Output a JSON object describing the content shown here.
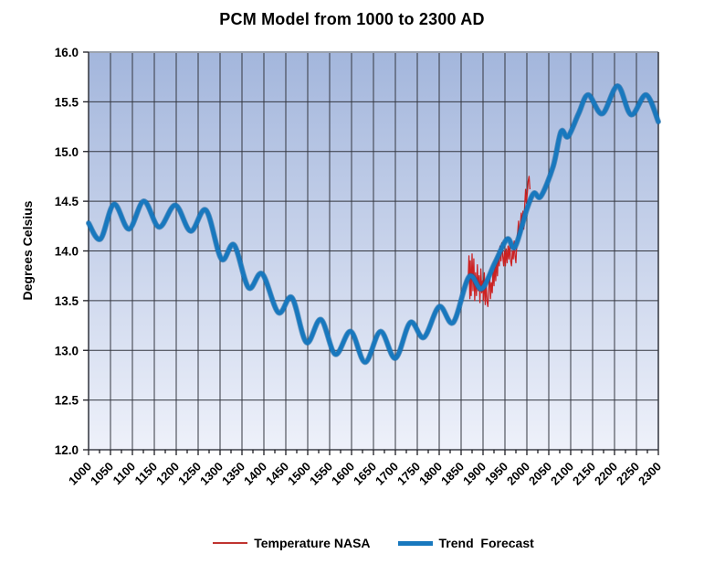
{
  "title": "PCM Model from 1000 to 2300 AD",
  "y_axis": {
    "label": "Degrees Celsius",
    "tick_labels": [
      "16.0",
      "15.5",
      "15.0",
      "14.5",
      "14.0",
      "13.5",
      "13.0",
      "12.5",
      "12.0"
    ]
  },
  "x_axis": {
    "tick_labels": [
      "1000",
      "1050",
      "1100",
      "1150",
      "1200",
      "1250",
      "1300",
      "1350",
      "1400",
      "1450",
      "1500",
      "1550",
      "1600",
      "1650",
      "1700",
      "1750",
      "1800",
      "1850",
      "1900",
      "1950",
      "2000",
      "2050",
      "2100",
      "2150",
      "2200",
      "2250",
      "2300"
    ]
  },
  "legend": [
    {
      "label": "Temperature NASA",
      "color": "#c03430",
      "line_thickness": 2
    },
    {
      "label": "Trend  Forecast",
      "color": "#1878be",
      "line_thickness": 5
    }
  ],
  "colors": {
    "plot_bg_top": "#a3b6dc",
    "plot_bg_bottom": "#eef1fa",
    "gridline": "#343740",
    "border_dark": "#3c3f48",
    "border_top": "#9aa2ae",
    "tick": "#1c1c22",
    "text": "#000000",
    "nasa_red": "#cc2222",
    "trend_blue": "#1878be",
    "trend_blue_edge": "#10609f"
  },
  "chart_data": {
    "type": "line",
    "title": "PCM Model from 1000 to 2300 AD",
    "xlabel": "",
    "ylabel": "Degrees Celsius",
    "xlim": [
      1000,
      2300
    ],
    "ylim": [
      12.0,
      16.0
    ],
    "x_major_step": 50,
    "x_minor_step": 25,
    "y_major_step": 0.5,
    "grid": true,
    "legend_position": "bottom",
    "series": [
      {
        "name": "Temperature NASA",
        "color": "#cc2222",
        "width": 1.3,
        "smooth": false,
        "points": [
          [
            1866,
            13.7
          ],
          [
            1868,
            13.95
          ],
          [
            1870,
            13.52
          ],
          [
            1871,
            13.9
          ],
          [
            1873,
            13.55
          ],
          [
            1875,
            13.97
          ],
          [
            1877,
            13.6
          ],
          [
            1879,
            13.92
          ],
          [
            1881,
            13.5
          ],
          [
            1883,
            13.78
          ],
          [
            1885,
            13.55
          ],
          [
            1887,
            13.86
          ],
          [
            1889,
            13.6
          ],
          [
            1891,
            13.75
          ],
          [
            1893,
            13.48
          ],
          [
            1895,
            13.82
          ],
          [
            1897,
            13.58
          ],
          [
            1899,
            13.7
          ],
          [
            1901,
            13.5
          ],
          [
            1903,
            13.78
          ],
          [
            1905,
            13.46
          ],
          [
            1907,
            13.68
          ],
          [
            1909,
            13.5
          ],
          [
            1911,
            13.44
          ],
          [
            1913,
            13.6
          ],
          [
            1915,
            13.78
          ],
          [
            1917,
            13.52
          ],
          [
            1919,
            13.68
          ],
          [
            1921,
            13.58
          ],
          [
            1923,
            13.82
          ],
          [
            1925,
            13.65
          ],
          [
            1927,
            13.88
          ],
          [
            1929,
            13.7
          ],
          [
            1931,
            13.92
          ],
          [
            1933,
            13.75
          ],
          [
            1935,
            13.98
          ],
          [
            1937,
            13.85
          ],
          [
            1939,
            14.05
          ],
          [
            1941,
            13.9
          ],
          [
            1943,
            14.08
          ],
          [
            1945,
            13.95
          ],
          [
            1947,
            13.85
          ],
          [
            1949,
            14.0
          ],
          [
            1951,
            13.85
          ],
          [
            1953,
            14.02
          ],
          [
            1955,
            13.88
          ],
          [
            1957,
            14.05
          ],
          [
            1959,
            13.92
          ],
          [
            1961,
            14.08
          ],
          [
            1963,
            13.9
          ],
          [
            1965,
            13.85
          ],
          [
            1967,
            14.0
          ],
          [
            1969,
            13.92
          ],
          [
            1971,
            14.1
          ],
          [
            1973,
            13.95
          ],
          [
            1975,
            13.88
          ],
          [
            1977,
            14.08
          ],
          [
            1979,
            14.18
          ],
          [
            1981,
            14.3
          ],
          [
            1983,
            14.12
          ],
          [
            1985,
            14.25
          ],
          [
            1987,
            14.38
          ],
          [
            1989,
            14.28
          ],
          [
            1991,
            14.4
          ],
          [
            1993,
            14.22
          ],
          [
            1995,
            14.45
          ],
          [
            1997,
            14.62
          ],
          [
            1999,
            14.48
          ],
          [
            2001,
            14.58
          ],
          [
            2003,
            14.7
          ],
          [
            2005,
            14.75
          ],
          [
            2007,
            14.62
          ]
        ]
      },
      {
        "name": "Trend Forecast",
        "color": "#1878be",
        "width": 4.5,
        "smooth": true,
        "points": [
          [
            1000,
            14.28
          ],
          [
            1027,
            14.12
          ],
          [
            1058,
            14.47
          ],
          [
            1092,
            14.22
          ],
          [
            1126,
            14.5
          ],
          [
            1161,
            14.24
          ],
          [
            1198,
            14.46
          ],
          [
            1233,
            14.2
          ],
          [
            1268,
            14.41
          ],
          [
            1303,
            13.92
          ],
          [
            1332,
            14.06
          ],
          [
            1365,
            13.63
          ],
          [
            1396,
            13.77
          ],
          [
            1433,
            13.38
          ],
          [
            1464,
            13.53
          ],
          [
            1497,
            13.08
          ],
          [
            1530,
            13.31
          ],
          [
            1563,
            12.96
          ],
          [
            1598,
            13.19
          ],
          [
            1631,
            12.88
          ],
          [
            1666,
            13.19
          ],
          [
            1700,
            12.92
          ],
          [
            1734,
            13.28
          ],
          [
            1765,
            13.13
          ],
          [
            1800,
            13.44
          ],
          [
            1832,
            13.28
          ],
          [
            1868,
            13.74
          ],
          [
            1897,
            13.62
          ],
          [
            1927,
            13.88
          ],
          [
            1955,
            14.12
          ],
          [
            1973,
            14.04
          ],
          [
            2000,
            14.42
          ],
          [
            2016,
            14.58
          ],
          [
            2032,
            14.55
          ],
          [
            2060,
            14.85
          ],
          [
            2078,
            15.2
          ],
          [
            2094,
            15.15
          ],
          [
            2118,
            15.38
          ],
          [
            2140,
            15.57
          ],
          [
            2172,
            15.38
          ],
          [
            2207,
            15.66
          ],
          [
            2238,
            15.37
          ],
          [
            2272,
            15.57
          ],
          [
            2300,
            15.3
          ]
        ]
      }
    ]
  }
}
